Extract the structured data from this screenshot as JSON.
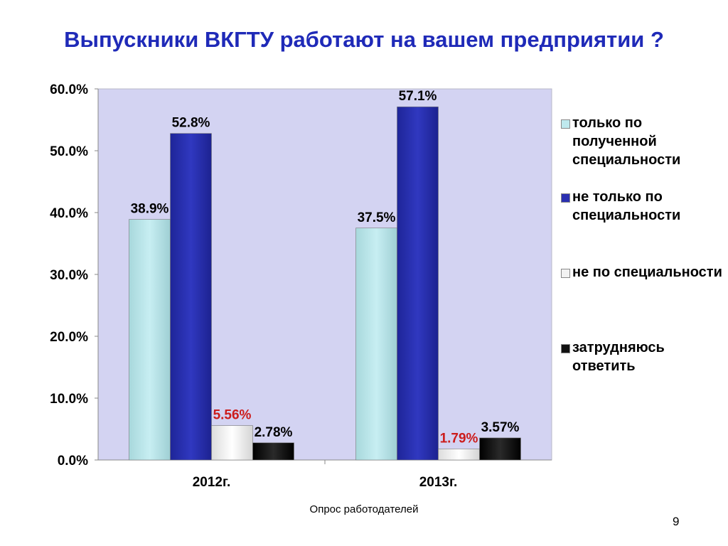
{
  "slide": {
    "title": "Выпускники ВКГТУ работают на вашем предприятии ?",
    "footer": "Опрос работодателей",
    "page_number": "9"
  },
  "chart_data": {
    "type": "bar",
    "title": "",
    "categories": [
      "2012г.",
      "2013г."
    ],
    "ylim": [
      0,
      60
    ],
    "yticks": [
      0,
      10,
      20,
      30,
      40,
      50,
      60
    ],
    "ytick_labels": [
      "0.0%",
      "10.0%",
      "20.0%",
      "30.0%",
      "40.0%",
      "50.0%",
      "60.0%"
    ],
    "grid": false,
    "legend_position": "right",
    "plot_background": "#d3d3f2",
    "series": [
      {
        "name": "только по полученной специальности",
        "values": [
          38.9,
          37.5
        ],
        "labels": [
          "38.9%",
          "37.5%"
        ],
        "color": "#bfe9ee",
        "label_color": "#000000"
      },
      {
        "name": "не только по специальности",
        "values": [
          52.8,
          57.1
        ],
        "labels": [
          "52.8%",
          "57.1%"
        ],
        "color": "#2a2fb0",
        "label_color": "#000000"
      },
      {
        "name": "не по специальности",
        "values": [
          5.56,
          1.79
        ],
        "labels": [
          "5.56%",
          "1.79%"
        ],
        "color": "#f4f4f4",
        "label_color": "#cc1c1c"
      },
      {
        "name": "затрудняюсь ответить",
        "values": [
          2.78,
          3.57
        ],
        "labels": [
          "2.78%",
          "3.57%"
        ],
        "color": "#111111",
        "label_color": "#000000"
      }
    ]
  }
}
